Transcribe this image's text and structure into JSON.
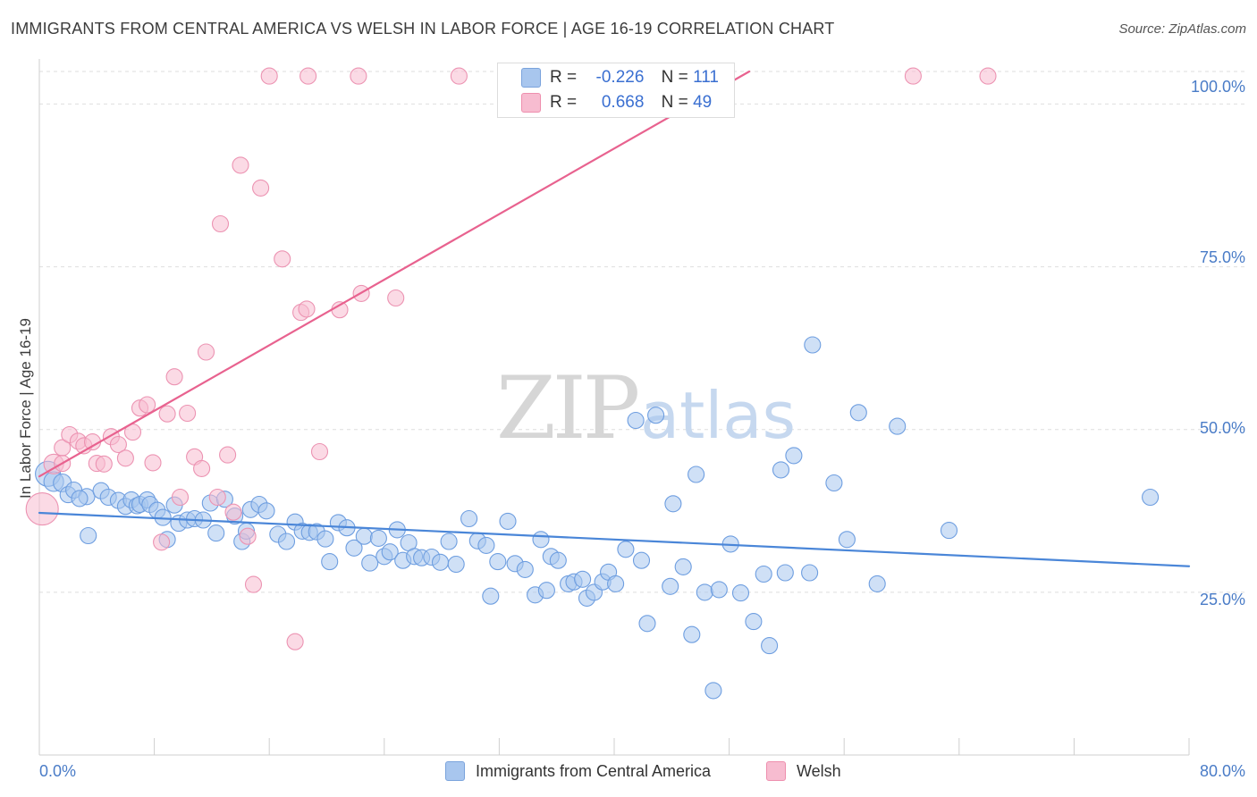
{
  "header": {
    "title": "IMMIGRANTS FROM CENTRAL AMERICA VS WELSH IN LABOR FORCE | AGE 16-19 CORRELATION CHART",
    "source": "Source: ZipAtlas.com"
  },
  "watermark": {
    "zip": "ZIP",
    "atlas": "atlas"
  },
  "legend_top": {
    "rows": [
      {
        "r_label": "R =",
        "r_value": "-0.226",
        "n_label": "N =",
        "n_value": "111",
        "color": "#a8c6ee",
        "border": "#7aa3dc"
      },
      {
        "r_label": "R =",
        "r_value": "0.668",
        "n_label": "N =",
        "n_value": "49",
        "color": "#f7bcd0",
        "border": "#ee8fae"
      }
    ]
  },
  "legend_bottom": {
    "items": [
      {
        "label": "Immigrants from Central America",
        "color": "#a8c6ee",
        "border": "#7aa3dc"
      },
      {
        "label": "Welsh",
        "color": "#f7bcd0",
        "border": "#ee8fae"
      }
    ]
  },
  "chart_data": {
    "type": "scatter",
    "title": "IMMIGRANTS FROM CENTRAL AMERICA VS WELSH IN LABOR FORCE | AGE 16-19 CORRELATION CHART",
    "xlabel": "",
    "ylabel": "In Labor Force | Age 16-19",
    "xlim": [
      0,
      80
    ],
    "ylim": [
      0,
      105
    ],
    "x_tick_labels": [
      "0.0%",
      "80.0%"
    ],
    "y_ticks": [
      25,
      50,
      75,
      100
    ],
    "y_tick_labels": [
      "25.0%",
      "50.0%",
      "75.0%",
      "100.0%"
    ],
    "grid": true,
    "legend_position": "top-center",
    "colors": {
      "blue": "#4a86d8",
      "blue_fill": "#a8c6ee",
      "pink": "#e8628f",
      "pink_fill": "#f7bcd0"
    },
    "series": [
      {
        "name": "Immigrants from Central America",
        "color": "#4a86d8",
        "trend": {
          "x": [
            0,
            80
          ],
          "y": [
            37.2,
            29.0
          ]
        },
        "points": [
          [
            0.6,
            43.2,
            14
          ],
          [
            1.0,
            42.0,
            11
          ],
          [
            1.6,
            41.8,
            10
          ],
          [
            2.0,
            40.0,
            9
          ],
          [
            2.4,
            40.7,
            9
          ],
          [
            3.3,
            39.7,
            9
          ],
          [
            2.8,
            39.4,
            9
          ],
          [
            3.4,
            33.7,
            9
          ],
          [
            4.3,
            40.6,
            9
          ],
          [
            4.8,
            39.6,
            9
          ],
          [
            5.5,
            39.1,
            9
          ],
          [
            6.0,
            38.2,
            9
          ],
          [
            6.4,
            39.2,
            9
          ],
          [
            6.8,
            38.3,
            9
          ],
          [
            7.0,
            38.5,
            9
          ],
          [
            7.5,
            39.2,
            9
          ],
          [
            7.7,
            38.5,
            9
          ],
          [
            8.2,
            37.6,
            9
          ],
          [
            8.6,
            36.5,
            9
          ],
          [
            8.9,
            33.1,
            9
          ],
          [
            9.4,
            38.4,
            9
          ],
          [
            9.7,
            35.6,
            9
          ],
          [
            10.3,
            36.1,
            9
          ],
          [
            10.8,
            36.3,
            9
          ],
          [
            11.4,
            36.1,
            9
          ],
          [
            11.9,
            38.7,
            9
          ],
          [
            12.3,
            34.1,
            9
          ],
          [
            12.9,
            39.3,
            9
          ],
          [
            13.6,
            36.7,
            9
          ],
          [
            14.1,
            32.8,
            9
          ],
          [
            14.4,
            34.4,
            9
          ],
          [
            14.7,
            37.7,
            9
          ],
          [
            15.3,
            38.5,
            9
          ],
          [
            15.8,
            37.5,
            9
          ],
          [
            16.6,
            33.9,
            9
          ],
          [
            17.2,
            32.8,
            9
          ],
          [
            17.8,
            35.8,
            9
          ],
          [
            18.3,
            34.4,
            9
          ],
          [
            18.8,
            34.2,
            9
          ],
          [
            19.3,
            34.3,
            9
          ],
          [
            19.9,
            33.2,
            9
          ],
          [
            20.2,
            29.7,
            9
          ],
          [
            20.8,
            35.7,
            9
          ],
          [
            21.4,
            34.9,
            9
          ],
          [
            21.9,
            31.8,
            9
          ],
          [
            22.6,
            33.6,
            9
          ],
          [
            23.0,
            29.5,
            9
          ],
          [
            23.6,
            33.3,
            9
          ],
          [
            24.0,
            30.5,
            9
          ],
          [
            24.4,
            31.2,
            9
          ],
          [
            24.9,
            34.6,
            9
          ],
          [
            25.3,
            29.9,
            9
          ],
          [
            25.7,
            32.6,
            9
          ],
          [
            26.1,
            30.5,
            9
          ],
          [
            26.6,
            30.3,
            9
          ],
          [
            27.3,
            30.4,
            9
          ],
          [
            27.9,
            29.6,
            9
          ],
          [
            28.5,
            32.8,
            9
          ],
          [
            29.0,
            29.3,
            9
          ],
          [
            29.9,
            36.3,
            9
          ],
          [
            30.5,
            32.9,
            9
          ],
          [
            31.1,
            32.2,
            9
          ],
          [
            31.4,
            24.4,
            9
          ],
          [
            31.9,
            29.7,
            9
          ],
          [
            32.6,
            35.9,
            9
          ],
          [
            33.1,
            29.4,
            9
          ],
          [
            33.8,
            28.5,
            9
          ],
          [
            34.5,
            24.6,
            9
          ],
          [
            34.9,
            33.1,
            9
          ],
          [
            35.3,
            25.3,
            9
          ],
          [
            35.6,
            30.5,
            9
          ],
          [
            36.1,
            29.9,
            9
          ],
          [
            36.8,
            26.3,
            9
          ],
          [
            37.2,
            26.6,
            9
          ],
          [
            37.8,
            27.0,
            9
          ],
          [
            38.1,
            24.1,
            9
          ],
          [
            38.6,
            25.0,
            9
          ],
          [
            39.2,
            26.6,
            9
          ],
          [
            39.6,
            28.1,
            9
          ],
          [
            40.1,
            26.3,
            9
          ],
          [
            40.8,
            31.6,
            9
          ],
          [
            41.5,
            51.4,
            9
          ],
          [
            41.9,
            29.9,
            9
          ],
          [
            42.3,
            20.2,
            9
          ],
          [
            42.9,
            52.2,
            9
          ],
          [
            43.9,
            25.9,
            9
          ],
          [
            44.1,
            38.6,
            9
          ],
          [
            44.8,
            28.9,
            9
          ],
          [
            45.4,
            18.5,
            9
          ],
          [
            45.7,
            43.1,
            9
          ],
          [
            46.3,
            25.0,
            9
          ],
          [
            46.9,
            9.9,
            9
          ],
          [
            47.3,
            25.4,
            9
          ],
          [
            48.1,
            32.4,
            9
          ],
          [
            48.8,
            24.9,
            9
          ],
          [
            49.7,
            20.5,
            9
          ],
          [
            50.4,
            27.8,
            9
          ],
          [
            50.8,
            16.8,
            9
          ],
          [
            51.6,
            43.8,
            9
          ],
          [
            51.9,
            28.0,
            9
          ],
          [
            52.5,
            46.0,
            9
          ],
          [
            53.6,
            28.0,
            9
          ],
          [
            53.8,
            63.0,
            9
          ],
          [
            55.3,
            41.8,
            9
          ],
          [
            56.2,
            33.1,
            9
          ],
          [
            57.0,
            52.6,
            9
          ],
          [
            58.3,
            26.3,
            9
          ],
          [
            59.7,
            50.5,
            9
          ],
          [
            63.3,
            34.5,
            9
          ],
          [
            77.3,
            39.6,
            9
          ]
        ]
      },
      {
        "name": "Welsh",
        "color": "#e8628f",
        "trend": {
          "x": [
            0,
            49.4
          ],
          "y": [
            42.8,
            105
          ]
        },
        "points": [
          [
            0.2,
            37.8,
            18
          ],
          [
            1.0,
            44.7,
            11
          ],
          [
            1.6,
            44.8,
            9
          ],
          [
            1.6,
            47.2,
            9
          ],
          [
            2.1,
            49.2,
            9
          ],
          [
            2.7,
            48.2,
            9
          ],
          [
            3.1,
            47.5,
            9
          ],
          [
            3.7,
            48.1,
            9
          ],
          [
            4.0,
            44.8,
            9
          ],
          [
            4.5,
            44.7,
            9
          ],
          [
            5.0,
            48.9,
            9
          ],
          [
            5.5,
            47.7,
            9
          ],
          [
            6.0,
            45.6,
            9
          ],
          [
            6.5,
            49.6,
            9
          ],
          [
            7.0,
            53.3,
            9
          ],
          [
            7.5,
            53.8,
            9
          ],
          [
            7.9,
            44.9,
            9
          ],
          [
            8.5,
            32.7,
            9
          ],
          [
            8.9,
            52.4,
            9
          ],
          [
            9.4,
            58.1,
            9
          ],
          [
            9.8,
            39.6,
            9
          ],
          [
            10.3,
            52.5,
            9
          ],
          [
            10.8,
            45.8,
            9
          ],
          [
            11.3,
            44.0,
            9
          ],
          [
            11.6,
            61.9,
            9
          ],
          [
            12.4,
            39.6,
            9
          ],
          [
            12.6,
            81.6,
            9
          ],
          [
            13.1,
            46.1,
            9
          ],
          [
            13.5,
            37.3,
            9
          ],
          [
            14.0,
            90.6,
            9
          ],
          [
            14.5,
            33.6,
            9
          ],
          [
            14.9,
            26.2,
            9
          ],
          [
            15.4,
            87.1,
            9
          ],
          [
            16.0,
            104.3,
            9
          ],
          [
            16.9,
            76.2,
            9
          ],
          [
            17.8,
            17.4,
            9
          ],
          [
            18.2,
            68.0,
            9
          ],
          [
            18.6,
            68.5,
            9
          ],
          [
            18.7,
            104.3,
            9
          ],
          [
            19.5,
            46.6,
            9
          ],
          [
            20.9,
            68.4,
            9
          ],
          [
            22.2,
            104.3,
            9
          ],
          [
            22.4,
            70.9,
            9
          ],
          [
            24.8,
            70.2,
            9
          ],
          [
            29.2,
            104.3,
            9
          ],
          [
            32.5,
            104.3,
            9
          ],
          [
            37.1,
            104.3,
            9
          ],
          [
            60.8,
            104.3,
            9
          ],
          [
            66.0,
            104.3,
            9
          ]
        ]
      }
    ]
  }
}
